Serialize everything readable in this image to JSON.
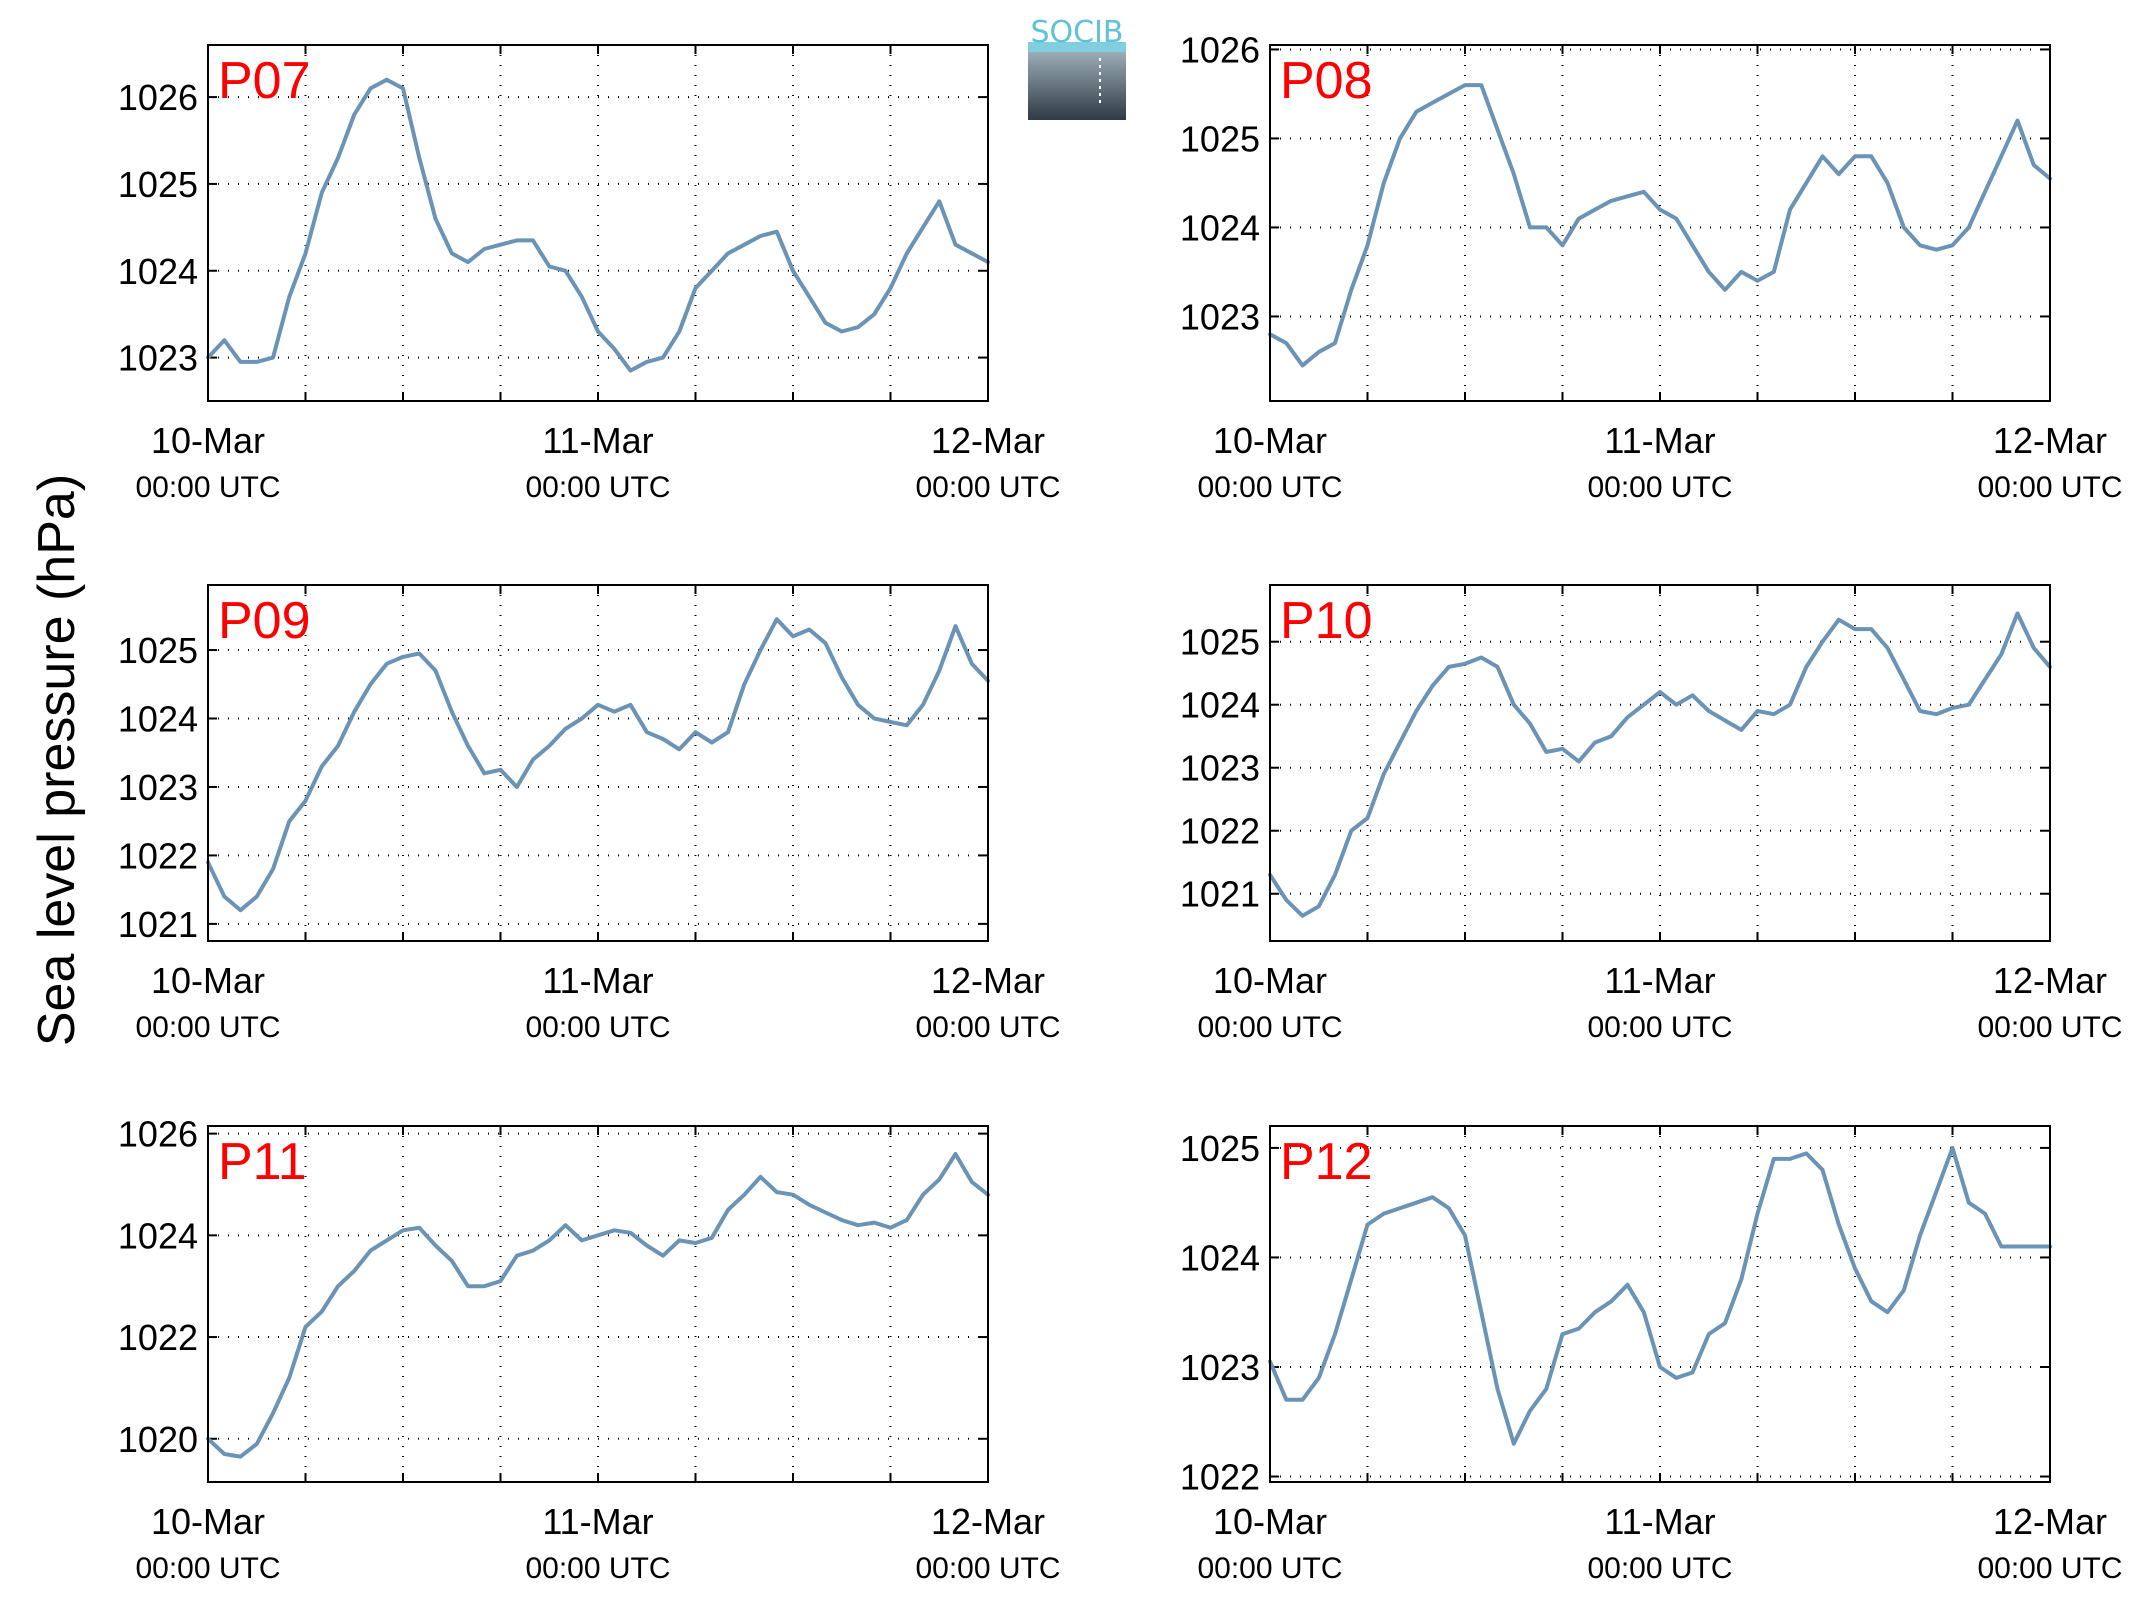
{
  "figure": {
    "ylabel": "Sea level pressure (hPa)",
    "line_color": "#6a93b5",
    "panel_label_color": "#ff0000",
    "logo_text": "SOCIB",
    "logo_colors": [
      "#5fc2d8",
      "#8a9aa6",
      "#2e3a44"
    ]
  },
  "chart_data": [
    {
      "type": "line",
      "panel_label": "P07",
      "xlim": [
        "10-Mar 00:00",
        "12-Mar 00:00"
      ],
      "xticklabels": [
        {
          "date": "10-Mar",
          "time": "00:00 UTC"
        },
        {
          "date": "11-Mar",
          "time": "00:00 UTC"
        },
        {
          "date": "12-Mar",
          "time": "00:00 UTC"
        }
      ],
      "ylim": [
        1022.5,
        1026.6
      ],
      "yticks": [
        1023,
        1024,
        1025,
        1026
      ],
      "grid": true,
      "series": [
        {
          "x_hours": [
            0,
            1,
            2,
            3,
            4,
            5,
            6,
            7,
            8,
            9,
            10,
            11,
            12,
            13,
            14,
            15,
            16,
            17,
            18,
            19,
            20,
            21,
            22,
            23,
            24,
            25,
            26,
            27,
            28,
            29,
            30,
            31,
            32,
            33,
            34,
            35,
            36,
            37,
            38,
            39,
            40,
            41,
            42,
            43,
            44,
            45,
            46,
            47,
            48
          ],
          "values": [
            1023.0,
            1023.2,
            1022.95,
            1022.95,
            1023.0,
            1023.7,
            1024.2,
            1024.9,
            1025.3,
            1025.8,
            1026.1,
            1026.2,
            1026.1,
            1025.3,
            1024.6,
            1024.2,
            1024.1,
            1024.25,
            1024.3,
            1024.35,
            1024.35,
            1024.05,
            1024.0,
            1023.7,
            1023.3,
            1023.1,
            1022.85,
            1022.95,
            1023.0,
            1023.3,
            1023.8,
            1024.0,
            1024.2,
            1024.3,
            1024.4,
            1024.45,
            1024.0,
            1023.7,
            1023.4,
            1023.3,
            1023.35,
            1023.5,
            1023.8,
            1024.2,
            1024.5,
            1024.8,
            1024.3,
            1024.2,
            1024.1
          ]
        }
      ]
    },
    {
      "type": "line",
      "panel_label": "P08",
      "xlim": [
        "10-Mar 00:00",
        "12-Mar 00:00"
      ],
      "xticklabels": [
        {
          "date": "10-Mar",
          "time": "00:00 UTC"
        },
        {
          "date": "11-Mar",
          "time": "00:00 UTC"
        },
        {
          "date": "12-Mar",
          "time": "00:00 UTC"
        }
      ],
      "ylim": [
        1022.05,
        1026.05
      ],
      "yticks": [
        1023,
        1024,
        1025,
        1026
      ],
      "grid": true,
      "series": [
        {
          "x_hours": [
            0,
            1,
            2,
            3,
            4,
            5,
            6,
            7,
            8,
            9,
            10,
            11,
            12,
            13,
            14,
            15,
            16,
            17,
            18,
            19,
            20,
            21,
            22,
            23,
            24,
            25,
            26,
            27,
            28,
            29,
            30,
            31,
            32,
            33,
            34,
            35,
            36,
            37,
            38,
            39,
            40,
            41,
            42,
            43,
            44,
            45,
            46,
            47,
            48
          ],
          "values": [
            1022.8,
            1022.7,
            1022.45,
            1022.6,
            1022.7,
            1023.3,
            1023.8,
            1024.5,
            1025.0,
            1025.3,
            1025.4,
            1025.5,
            1025.6,
            1025.6,
            1025.1,
            1024.6,
            1024.0,
            1024.0,
            1023.8,
            1024.1,
            1024.2,
            1024.3,
            1024.35,
            1024.4,
            1024.2,
            1024.1,
            1023.8,
            1023.5,
            1023.3,
            1023.5,
            1023.4,
            1023.5,
            1024.2,
            1024.5,
            1024.8,
            1024.6,
            1024.8,
            1024.8,
            1024.5,
            1024.0,
            1023.8,
            1023.75,
            1023.8,
            1024.0,
            1024.4,
            1024.8,
            1025.2,
            1024.7,
            1024.55
          ]
        }
      ]
    },
    {
      "type": "line",
      "panel_label": "P09",
      "xlim": [
        "10-Mar 00:00",
        "12-Mar 00:00"
      ],
      "xticklabels": [
        {
          "date": "10-Mar",
          "time": "00:00 UTC"
        },
        {
          "date": "11-Mar",
          "time": "00:00 UTC"
        },
        {
          "date": "12-Mar",
          "time": "00:00 UTC"
        }
      ],
      "ylim": [
        1020.75,
        1025.95
      ],
      "yticks": [
        1021,
        1022,
        1023,
        1024,
        1025
      ],
      "grid": true,
      "series": [
        {
          "x_hours": [
            0,
            1,
            2,
            3,
            4,
            5,
            6,
            7,
            8,
            9,
            10,
            11,
            12,
            13,
            14,
            15,
            16,
            17,
            18,
            19,
            20,
            21,
            22,
            23,
            24,
            25,
            26,
            27,
            28,
            29,
            30,
            31,
            32,
            33,
            34,
            35,
            36,
            37,
            38,
            39,
            40,
            41,
            42,
            43,
            44,
            45,
            46,
            47,
            48
          ],
          "values": [
            1021.9,
            1021.4,
            1021.2,
            1021.4,
            1021.8,
            1022.5,
            1022.8,
            1023.3,
            1023.6,
            1024.1,
            1024.5,
            1024.8,
            1024.9,
            1024.95,
            1024.7,
            1024.1,
            1023.6,
            1023.2,
            1023.25,
            1023.0,
            1023.4,
            1023.6,
            1023.85,
            1024.0,
            1024.2,
            1024.1,
            1024.2,
            1023.8,
            1023.7,
            1023.55,
            1023.8,
            1023.65,
            1023.8,
            1024.5,
            1025.0,
            1025.45,
            1025.2,
            1025.3,
            1025.1,
            1024.6,
            1024.2,
            1024.0,
            1023.95,
            1023.9,
            1024.2,
            1024.7,
            1025.35,
            1024.8,
            1024.55
          ]
        }
      ]
    },
    {
      "type": "line",
      "panel_label": "P10",
      "xlim": [
        "10-Mar 00:00",
        "12-Mar 00:00"
      ],
      "xticklabels": [
        {
          "date": "10-Mar",
          "time": "00:00 UTC"
        },
        {
          "date": "11-Mar",
          "time": "00:00 UTC"
        },
        {
          "date": "12-Mar",
          "time": "00:00 UTC"
        }
      ],
      "ylim": [
        1020.25,
        1025.9
      ],
      "yticks": [
        1021,
        1022,
        1023,
        1024,
        1025
      ],
      "grid": true,
      "series": [
        {
          "x_hours": [
            0,
            1,
            2,
            3,
            4,
            5,
            6,
            7,
            8,
            9,
            10,
            11,
            12,
            13,
            14,
            15,
            16,
            17,
            18,
            19,
            20,
            21,
            22,
            23,
            24,
            25,
            26,
            27,
            28,
            29,
            30,
            31,
            32,
            33,
            34,
            35,
            36,
            37,
            38,
            39,
            40,
            41,
            42,
            43,
            44,
            45,
            46,
            47,
            48
          ],
          "values": [
            1021.3,
            1020.9,
            1020.65,
            1020.8,
            1021.3,
            1022.0,
            1022.2,
            1022.9,
            1023.4,
            1023.9,
            1024.3,
            1024.6,
            1024.65,
            1024.75,
            1024.6,
            1024.0,
            1023.7,
            1023.25,
            1023.3,
            1023.1,
            1023.4,
            1023.5,
            1023.8,
            1024.0,
            1024.2,
            1024.0,
            1024.15,
            1023.9,
            1023.75,
            1023.6,
            1023.9,
            1023.85,
            1024.0,
            1024.6,
            1025.0,
            1025.35,
            1025.2,
            1025.2,
            1024.9,
            1024.4,
            1023.9,
            1023.85,
            1023.95,
            1024.0,
            1024.4,
            1024.8,
            1025.45,
            1024.9,
            1024.6
          ]
        }
      ]
    },
    {
      "type": "line",
      "panel_label": "P11",
      "xlim": [
        "10-Mar 00:00",
        "12-Mar 00:00"
      ],
      "xticklabels": [
        {
          "date": "10-Mar",
          "time": "00:00 UTC"
        },
        {
          "date": "11-Mar",
          "time": "00:00 UTC"
        },
        {
          "date": "12-Mar",
          "time": "00:00 UTC"
        }
      ],
      "ylim": [
        1019.15,
        1026.15
      ],
      "yticks": [
        1020,
        1022,
        1024,
        1026
      ],
      "grid": true,
      "series": [
        {
          "x_hours": [
            0,
            1,
            2,
            3,
            4,
            5,
            6,
            7,
            8,
            9,
            10,
            11,
            12,
            13,
            14,
            15,
            16,
            17,
            18,
            19,
            20,
            21,
            22,
            23,
            24,
            25,
            26,
            27,
            28,
            29,
            30,
            31,
            32,
            33,
            34,
            35,
            36,
            37,
            38,
            39,
            40,
            41,
            42,
            43,
            44,
            45,
            46,
            47,
            48
          ],
          "values": [
            1020.0,
            1019.7,
            1019.65,
            1019.9,
            1020.5,
            1021.2,
            1022.2,
            1022.5,
            1023.0,
            1023.3,
            1023.7,
            1023.9,
            1024.1,
            1024.15,
            1023.8,
            1023.5,
            1023.0,
            1023.0,
            1023.1,
            1023.6,
            1023.7,
            1023.9,
            1024.2,
            1023.9,
            1024.0,
            1024.1,
            1024.05,
            1023.8,
            1023.6,
            1023.9,
            1023.85,
            1023.95,
            1024.5,
            1024.8,
            1025.15,
            1024.85,
            1024.8,
            1024.6,
            1024.45,
            1024.3,
            1024.2,
            1024.25,
            1024.15,
            1024.3,
            1024.8,
            1025.1,
            1025.6,
            1025.05,
            1024.8
          ]
        }
      ]
    },
    {
      "type": "line",
      "panel_label": "P12",
      "xlim": [
        "10-Mar 00:00",
        "12-Mar 00:00"
      ],
      "xticklabels": [
        {
          "date": "10-Mar",
          "time": "00:00 UTC"
        },
        {
          "date": "11-Mar",
          "time": "00:00 UTC"
        },
        {
          "date": "12-Mar",
          "time": "00:00 UTC"
        }
      ],
      "ylim": [
        1021.95,
        1025.2
      ],
      "yticks": [
        1022,
        1023,
        1024,
        1025
      ],
      "grid": true,
      "series": [
        {
          "x_hours": [
            0,
            1,
            2,
            3,
            4,
            5,
            6,
            7,
            8,
            9,
            10,
            11,
            12,
            13,
            14,
            15,
            16,
            17,
            18,
            19,
            20,
            21,
            22,
            23,
            24,
            25,
            26,
            27,
            28,
            29,
            30,
            31,
            32,
            33,
            34,
            35,
            36,
            37,
            38,
            39,
            40,
            41,
            42,
            43,
            44,
            45,
            46,
            47,
            48
          ],
          "values": [
            1023.05,
            1022.7,
            1022.7,
            1022.9,
            1023.3,
            1023.8,
            1024.3,
            1024.4,
            1024.45,
            1024.5,
            1024.55,
            1024.45,
            1024.2,
            1023.5,
            1022.8,
            1022.3,
            1022.6,
            1022.8,
            1023.3,
            1023.35,
            1023.5,
            1023.6,
            1023.75,
            1023.5,
            1023.0,
            1022.9,
            1022.95,
            1023.3,
            1023.4,
            1023.8,
            1024.4,
            1024.9,
            1024.9,
            1024.95,
            1024.8,
            1024.3,
            1023.9,
            1023.6,
            1023.5,
            1023.7,
            1024.2,
            1024.6,
            1025.0,
            1024.5,
            1024.4,
            1024.1,
            1024.1,
            1024.1,
            1024.1
          ]
        }
      ]
    }
  ]
}
